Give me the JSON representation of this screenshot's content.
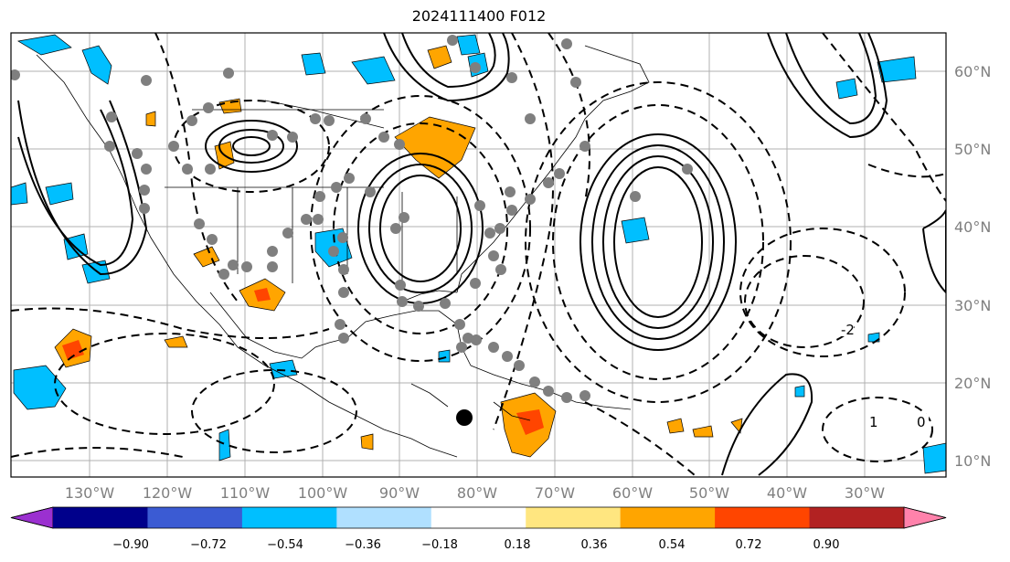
{
  "title": "2024111400 F012",
  "map": {
    "lat_ticks": [
      "60°N",
      "50°N",
      "40°N",
      "30°N",
      "20°N",
      "10°N"
    ],
    "lon_ticks": [
      "130°W",
      "120°W",
      "110°W",
      "100°W",
      "90°W",
      "80°W",
      "70°W",
      "60°W",
      "50°W",
      "40°W",
      "30°W"
    ],
    "contour_labels": [
      "-2",
      "1",
      "0"
    ],
    "grid": true,
    "label_color": "#7f7f7f"
  },
  "colorbar": {
    "ticks": [
      "−0.90",
      "−0.72",
      "−0.54",
      "−0.36",
      "−0.18",
      "0.18",
      "0.36",
      "0.54",
      "0.72",
      "0.90"
    ],
    "colors": [
      "#9b30d0",
      "#00008b",
      "#3b5bd3",
      "#00bfff",
      "#b0e0ff",
      "#ffffff",
      "#ffe680",
      "#ffa500",
      "#ff4500",
      "#b22222",
      "#ff82ab"
    ],
    "extend": "both"
  },
  "markers": {
    "storm_center": "black dot",
    "track_points": "gray dots"
  }
}
